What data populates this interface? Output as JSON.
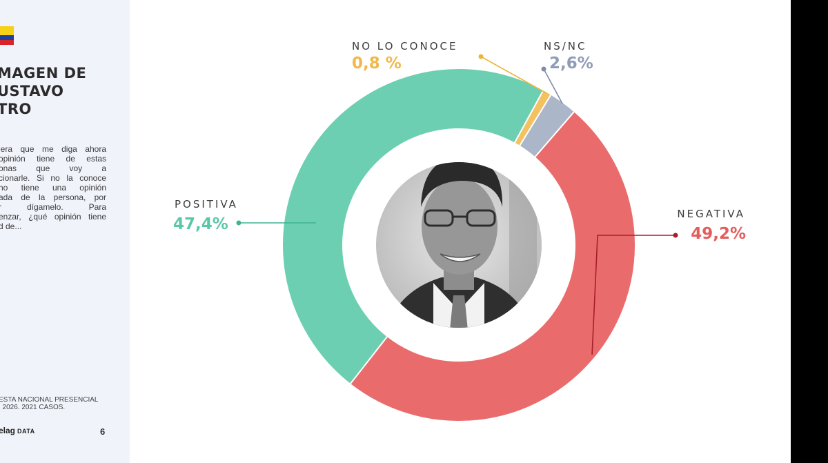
{
  "sidebar": {
    "flag_colors": [
      "#f7d117",
      "#1d3f9e",
      "#d8232a"
    ],
    "title_lines": [
      "MAGEN DE",
      "USTAVO",
      "TRO"
    ],
    "question_lines": [
      "iera que me diga ahora",
      "opinión tiene de estas",
      "onas  que  voy  a",
      "cionarle. Si no la conoce",
      "no  tiene  una  opinión",
      "ada de la persona, por",
      "r   dígamelo.   Para",
      "enzar, ¿qué opinión tiene",
      "d de..."
    ],
    "source_lines": [
      "ESTA NACIONAL PRESENCIAL",
      ". 2026. 2021 CASOS."
    ],
    "logo_text": "elag",
    "logo_suffix": "DATA",
    "page_number": "6"
  },
  "photo": {
    "subject": "portrait-photo"
  },
  "chart_data": {
    "type": "pie",
    "variant": "donut",
    "title": "",
    "categories": [
      "POSITIVA",
      "NO LO CONOCE",
      "NS/NC",
      "NEGATIVA"
    ],
    "values": [
      47.4,
      0.8,
      2.6,
      49.2
    ],
    "value_labels": [
      "47,4%",
      "0,8 %",
      "2,6%",
      "49,2%"
    ],
    "colors": [
      "#6ccfb2",
      "#f3c160",
      "#abb6c9",
      "#ea6b6b"
    ],
    "label_colors": [
      "#5cc7a8",
      "#f0b84a",
      "#8f9cb6",
      "#e35d5d"
    ],
    "leader_colors": [
      "#3fb38f",
      "#e9b53d",
      "#7f8ca8",
      "#a61f2a"
    ],
    "start_angle_deg": 218,
    "direction": "clockwise"
  }
}
